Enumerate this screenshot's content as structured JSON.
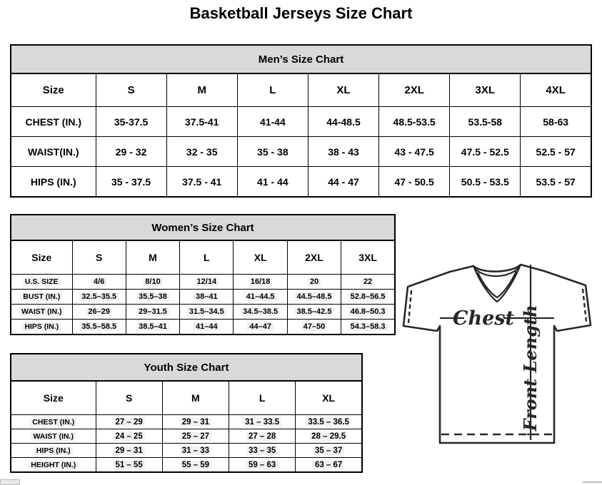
{
  "page_title": "Basketball Jerseys Size Chart",
  "mens": {
    "title": "Men’s Size Chart",
    "corner_label": "Size",
    "sizes": [
      "S",
      "M",
      "L",
      "XL",
      "2XL",
      "3XL",
      "4XL"
    ],
    "rows": [
      {
        "label": "CHEST (IN.)",
        "values": [
          "35-37.5",
          "37.5-41",
          "41-44",
          "44-48.5",
          "48.5-53.5",
          "53.5-58",
          "58-63"
        ]
      },
      {
        "label": "WAIST(IN.)",
        "values": [
          "29 - 32",
          "32 - 35",
          "35 - 38",
          "38 - 43",
          "43 - 47.5",
          "47.5 - 52.5",
          "52.5 - 57"
        ]
      },
      {
        "label": "HIPS (IN.)",
        "values": [
          "35 - 37.5",
          "37.5 - 41",
          "41 - 44",
          "44 - 47",
          "47 - 50.5",
          "50.5 - 53.5",
          "53.5 - 57"
        ]
      }
    ]
  },
  "womens": {
    "title": "Women’s Size Chart",
    "corner_label": "Size",
    "sizes": [
      "S",
      "M",
      "L",
      "XL",
      "2XL",
      "3XL"
    ],
    "rows": [
      {
        "label": "U.S. SIZE",
        "values": [
          "4/6",
          "8/10",
          "12/14",
          "16/18",
          "20",
          "22"
        ]
      },
      {
        "label": "BUST (IN.)",
        "values": [
          "32.5–35.5",
          "35.5–38",
          "38–41",
          "41–44.5",
          "44.5–48.5",
          "52.8–56.5"
        ]
      },
      {
        "label": "WAIST (IN.)",
        "values": [
          "26–29",
          "29–31.5",
          "31.5–34.5",
          "34.5–38.5",
          "38.5–42.5",
          "46.8–50.3"
        ]
      },
      {
        "label": "HIPS (IN.)",
        "values": [
          "35.5–58.5",
          "38.5–41",
          "41–44",
          "44–47",
          "47–50",
          "54.3–58.3"
        ]
      }
    ]
  },
  "youth": {
    "title": "Youth Size Chart",
    "corner_label": "Size",
    "sizes": [
      "S",
      "M",
      "L",
      "XL"
    ],
    "rows": [
      {
        "label": "CHEST (IN.)",
        "values": [
          "27 – 29",
          "29 – 31",
          "31 – 33.5",
          "33.5 – 36.5"
        ]
      },
      {
        "label": "WAIST (IN.)",
        "values": [
          "24 – 25",
          "25 – 27",
          "27 – 28",
          "28 – 29.5"
        ]
      },
      {
        "label": "HIPS (IN.)",
        "values": [
          "29 – 31",
          "31 – 33",
          "33 – 35",
          "35 – 37"
        ]
      },
      {
        "label": "HEIGHT (IN.)",
        "values": [
          "51 – 55",
          "55 – 59",
          "59 – 63",
          "63 – 67"
        ]
      }
    ]
  },
  "diagram": {
    "chest_label": "Chest",
    "front_length_label": "Front Length"
  },
  "colors": {
    "table_header_bg": "#d9d9d9",
    "table_border": "#000000",
    "value_highlight_bg": "#f1f1f1",
    "diagram_line": "#2b2626"
  }
}
